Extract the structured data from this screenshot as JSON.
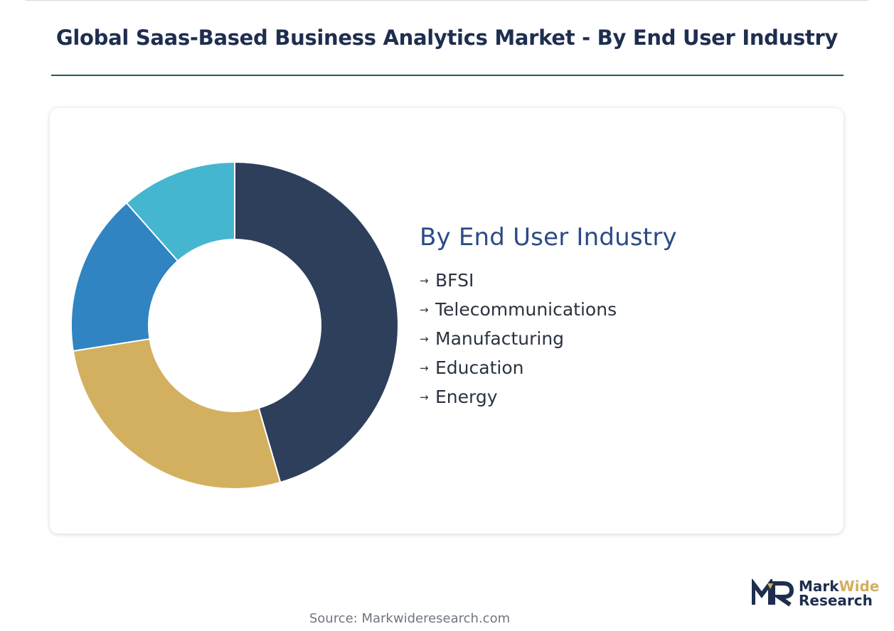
{
  "title": "Global Saas-Based Business Analytics Market - By End User Industry",
  "source": "Source: Markwideresearch.com",
  "logo": {
    "part1": "Mark",
    "part2": "Wide",
    "line2": "Research"
  },
  "chart_data": {
    "type": "pie",
    "style": "donut",
    "title": "By End User Industry",
    "categories": [
      "BFSI",
      "Telecommunications",
      "Manufacturing",
      "Education",
      "Energy"
    ],
    "slices": [
      {
        "label": "BFSI",
        "value": 45.5,
        "color": "#2e3f5c"
      },
      {
        "label": "Telecommunications",
        "value": 27.0,
        "color": "#d3b05f"
      },
      {
        "label": "Manufacturing",
        "value": 16.0,
        "color": "#2f84c1"
      },
      {
        "label": "Education",
        "value": 11.5,
        "color": "#45b6cf"
      },
      {
        "label": "Energy",
        "value": 0,
        "color": "#1e2e4f"
      }
    ],
    "legend_position": "right"
  }
}
